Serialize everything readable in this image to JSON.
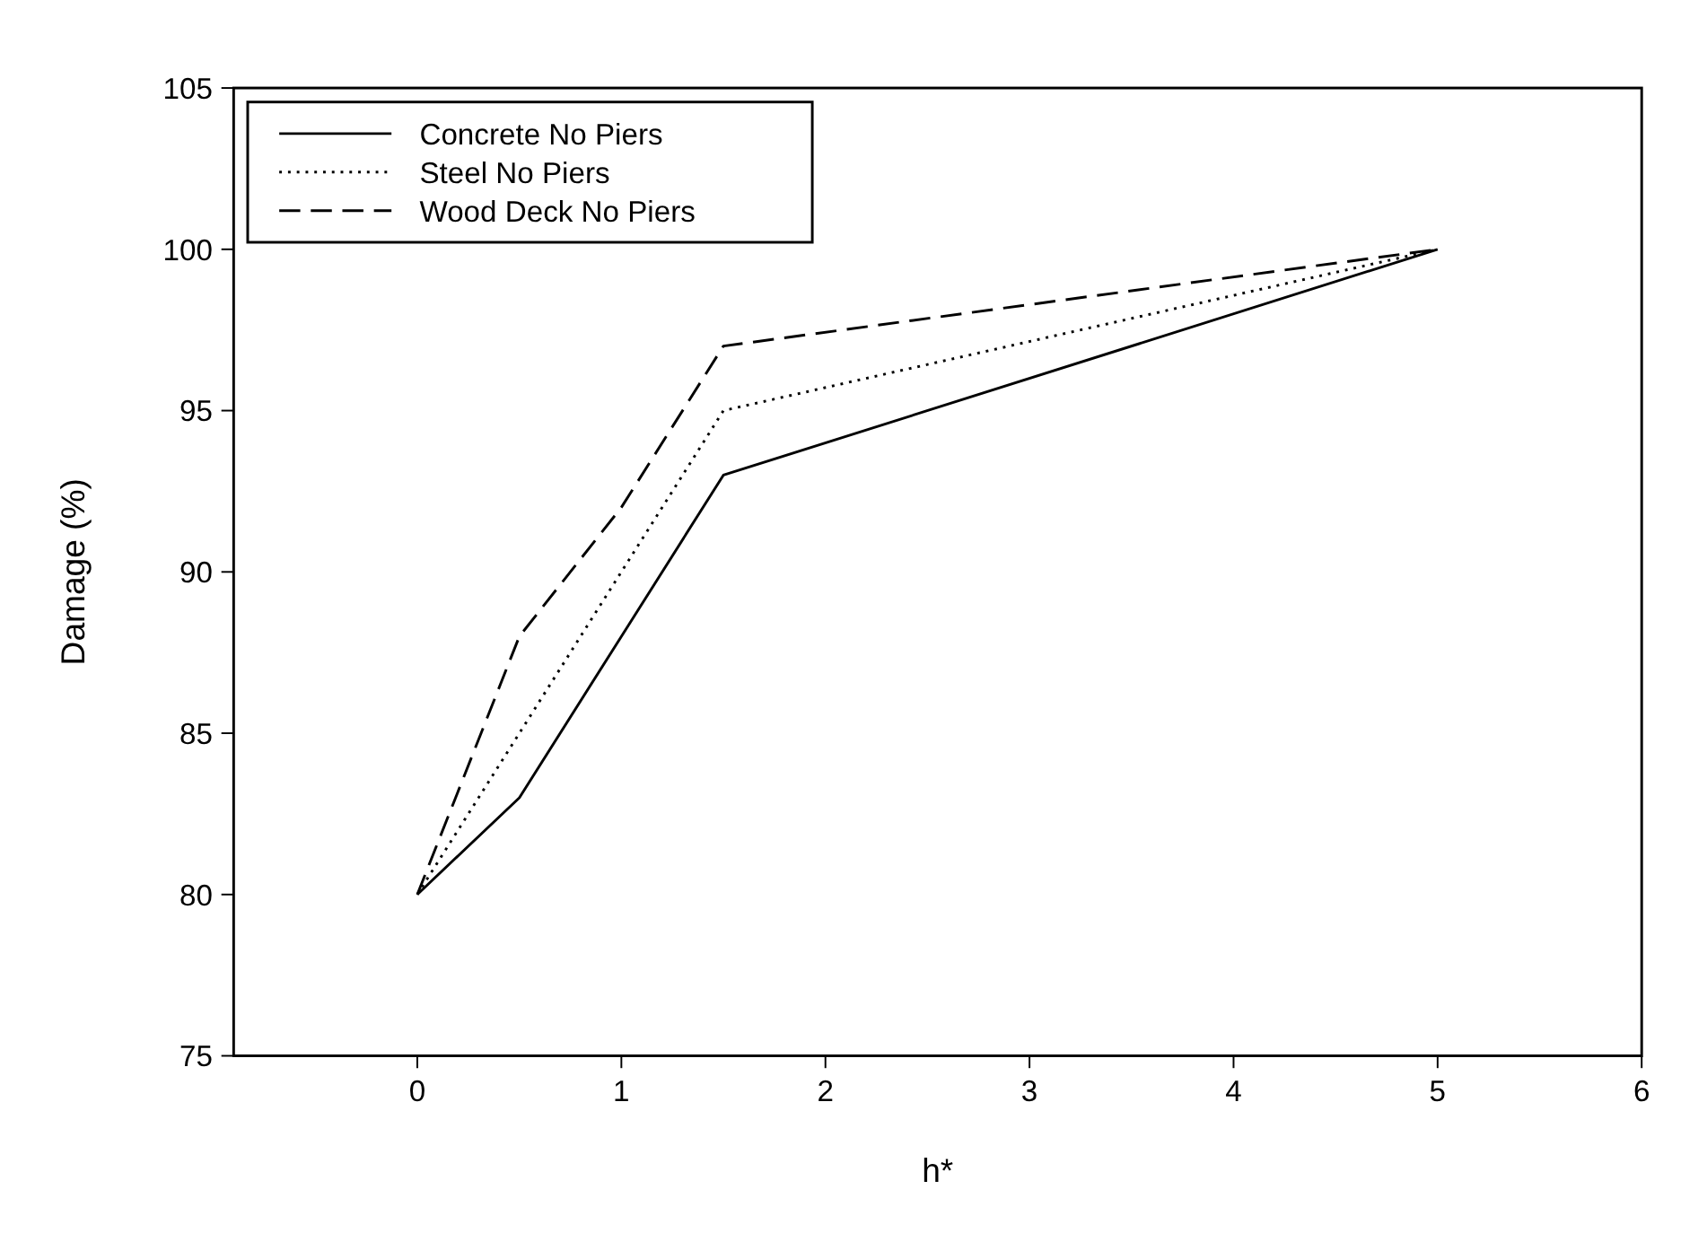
{
  "chart_data": {
    "type": "line",
    "xlabel": "h*",
    "ylabel": "Damage (%)",
    "x": [
      0,
      0.5,
      1,
      1.5,
      5
    ],
    "series": [
      {
        "name": "Concrete No Piers",
        "color": "#000000",
        "values": [
          80,
          83,
          88,
          93,
          100
        ],
        "line_style": "solid"
      },
      {
        "name": "Steel No Piers",
        "color": "#000000",
        "values": [
          80,
          85,
          90,
          95,
          100
        ],
        "line_style": "dotted"
      },
      {
        "name": "Wood Deck No Piers",
        "color": "#000000",
        "values": [
          80,
          88,
          92,
          97,
          100
        ],
        "line_style": "dashed"
      }
    ],
    "xlim": [
      -0.9,
      6
    ],
    "xticks": [
      0,
      1,
      2,
      3,
      4,
      5,
      6
    ],
    "ylim": [
      75,
      105
    ],
    "yticks": [
      75,
      80,
      85,
      90,
      95,
      100,
      105
    ],
    "grid": false,
    "legend": "top left",
    "marker": "none"
  }
}
